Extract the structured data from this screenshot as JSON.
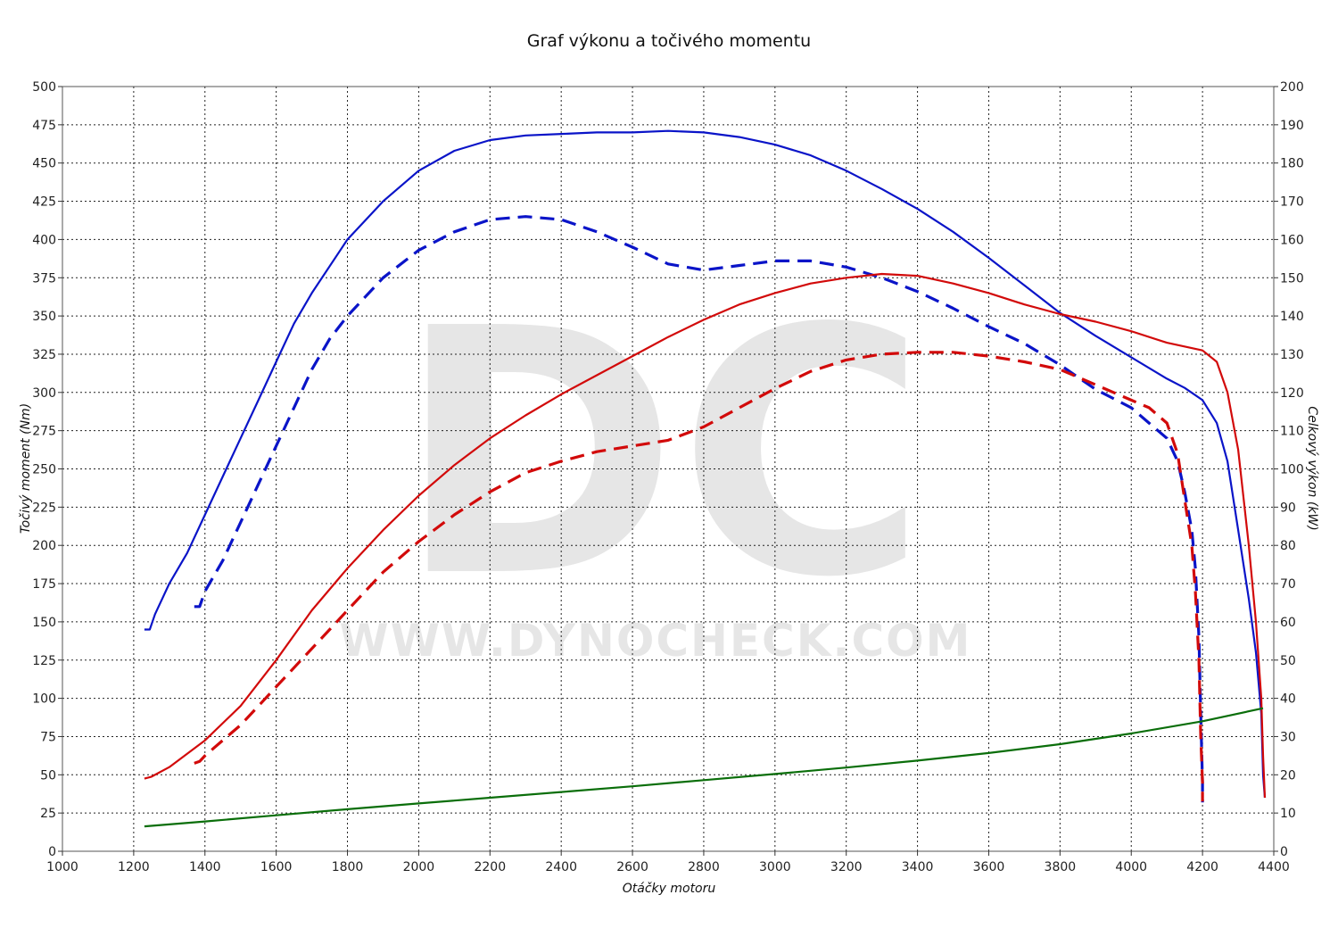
{
  "chart_data": {
    "type": "line",
    "title": "Graf výkonu a točivého momentu",
    "xlabel": "Otáčky motoru",
    "ylabel_left": "Točivý moment (Nm)",
    "ylabel_right": "Celkový výkon (kW)",
    "xlim": [
      1000,
      4400
    ],
    "ylim_left": [
      0,
      500
    ],
    "ylim_right": [
      0,
      200
    ],
    "x_ticks": [
      1000,
      1200,
      1400,
      1600,
      1800,
      2000,
      2200,
      2400,
      2600,
      2800,
      3000,
      3200,
      3400,
      3600,
      3800,
      4000,
      4200,
      4400
    ],
    "y_left_ticks": [
      0,
      25,
      50,
      75,
      100,
      125,
      150,
      175,
      200,
      225,
      250,
      275,
      300,
      325,
      350,
      375,
      400,
      425,
      450,
      475,
      500
    ],
    "y_right_ticks": [
      0,
      10,
      20,
      30,
      40,
      50,
      60,
      70,
      80,
      90,
      100,
      110,
      120,
      130,
      140,
      150,
      160,
      170,
      180,
      190,
      200
    ],
    "grid": true,
    "watermark": {
      "letters": "DC",
      "url": "WWW.DYNOCHECK.COM"
    },
    "series": [
      {
        "axis": "left",
        "color": "#0a14c8",
        "dash": false,
        "points": [
          [
            1230,
            145
          ],
          [
            1245,
            145
          ],
          [
            1260,
            155
          ],
          [
            1280,
            165
          ],
          [
            1300,
            175
          ],
          [
            1350,
            195
          ],
          [
            1400,
            220
          ],
          [
            1450,
            245
          ],
          [
            1500,
            270
          ],
          [
            1550,
            295
          ],
          [
            1600,
            320
          ],
          [
            1650,
            345
          ],
          [
            1700,
            365
          ],
          [
            1800,
            400
          ],
          [
            1900,
            425
          ],
          [
            2000,
            445
          ],
          [
            2100,
            458
          ],
          [
            2200,
            465
          ],
          [
            2300,
            468
          ],
          [
            2400,
            469
          ],
          [
            2500,
            470
          ],
          [
            2600,
            470
          ],
          [
            2700,
            471
          ],
          [
            2800,
            470
          ],
          [
            2900,
            467
          ],
          [
            3000,
            462
          ],
          [
            3100,
            455
          ],
          [
            3200,
            445
          ],
          [
            3300,
            433
          ],
          [
            3400,
            420
          ],
          [
            3500,
            405
          ],
          [
            3600,
            388
          ],
          [
            3700,
            370
          ],
          [
            3800,
            352
          ],
          [
            3900,
            337
          ],
          [
            4000,
            323
          ],
          [
            4100,
            309
          ],
          [
            4150,
            303
          ],
          [
            4200,
            295
          ],
          [
            4240,
            280
          ],
          [
            4270,
            255
          ],
          [
            4300,
            210
          ],
          [
            4330,
            165
          ],
          [
            4350,
            130
          ],
          [
            4365,
            90
          ],
          [
            4370,
            50
          ],
          [
            4375,
            35
          ]
        ]
      },
      {
        "axis": "left",
        "color": "#0a14c8",
        "dash": true,
        "points": [
          [
            1370,
            160
          ],
          [
            1385,
            160
          ],
          [
            1400,
            170
          ],
          [
            1450,
            190
          ],
          [
            1500,
            215
          ],
          [
            1550,
            240
          ],
          [
            1600,
            265
          ],
          [
            1650,
            290
          ],
          [
            1700,
            315
          ],
          [
            1750,
            335
          ],
          [
            1800,
            350
          ],
          [
            1900,
            375
          ],
          [
            2000,
            393
          ],
          [
            2100,
            405
          ],
          [
            2200,
            413
          ],
          [
            2300,
            415
          ],
          [
            2400,
            413
          ],
          [
            2500,
            405
          ],
          [
            2600,
            395
          ],
          [
            2700,
            384
          ],
          [
            2800,
            380
          ],
          [
            2900,
            383
          ],
          [
            3000,
            386
          ],
          [
            3100,
            386
          ],
          [
            3200,
            382
          ],
          [
            3300,
            375
          ],
          [
            3400,
            366
          ],
          [
            3500,
            355
          ],
          [
            3600,
            343
          ],
          [
            3700,
            332
          ],
          [
            3800,
            318
          ],
          [
            3900,
            302
          ],
          [
            4000,
            290
          ],
          [
            4050,
            280
          ],
          [
            4100,
            270
          ],
          [
            4130,
            255
          ],
          [
            4150,
            235
          ],
          [
            4170,
            210
          ],
          [
            4180,
            185
          ],
          [
            4190,
            140
          ],
          [
            4195,
            90
          ],
          [
            4200,
            45
          ],
          [
            4200,
            32
          ]
        ]
      },
      {
        "axis": "right",
        "color": "#d20a0a",
        "dash": false,
        "points": [
          [
            1230,
            19
          ],
          [
            1250,
            19.5
          ],
          [
            1300,
            22
          ],
          [
            1400,
            29
          ],
          [
            1500,
            38
          ],
          [
            1600,
            50
          ],
          [
            1700,
            63
          ],
          [
            1800,
            74
          ],
          [
            1900,
            84
          ],
          [
            2000,
            93
          ],
          [
            2100,
            101
          ],
          [
            2200,
            108
          ],
          [
            2300,
            114
          ],
          [
            2400,
            119.5
          ],
          [
            2500,
            124.5
          ],
          [
            2600,
            129.5
          ],
          [
            2700,
            134.5
          ],
          [
            2800,
            139
          ],
          [
            2900,
            143
          ],
          [
            3000,
            146
          ],
          [
            3100,
            148.5
          ],
          [
            3200,
            150
          ],
          [
            3300,
            151
          ],
          [
            3400,
            150.5
          ],
          [
            3500,
            148.5
          ],
          [
            3600,
            146
          ],
          [
            3700,
            143
          ],
          [
            3800,
            140.5
          ],
          [
            3900,
            138.5
          ],
          [
            4000,
            136
          ],
          [
            4100,
            133
          ],
          [
            4200,
            131
          ],
          [
            4240,
            128
          ],
          [
            4270,
            120
          ],
          [
            4300,
            105
          ],
          [
            4330,
            80
          ],
          [
            4350,
            60
          ],
          [
            4365,
            40
          ],
          [
            4370,
            25
          ],
          [
            4375,
            14
          ]
        ]
      },
      {
        "axis": "right",
        "color": "#d20a0a",
        "dash": true,
        "points": [
          [
            1370,
            23
          ],
          [
            1385,
            23.5
          ],
          [
            1400,
            25
          ],
          [
            1450,
            29
          ],
          [
            1500,
            33
          ],
          [
            1550,
            38
          ],
          [
            1600,
            43
          ],
          [
            1650,
            48
          ],
          [
            1700,
            53
          ],
          [
            1750,
            58
          ],
          [
            1800,
            63
          ],
          [
            1900,
            73
          ],
          [
            2000,
            81
          ],
          [
            2100,
            88
          ],
          [
            2200,
            94
          ],
          [
            2300,
            99
          ],
          [
            2400,
            102
          ],
          [
            2500,
            104.5
          ],
          [
            2600,
            106
          ],
          [
            2700,
            107.5
          ],
          [
            2800,
            111
          ],
          [
            2900,
            116
          ],
          [
            3000,
            121
          ],
          [
            3100,
            125.5
          ],
          [
            3200,
            128.5
          ],
          [
            3300,
            130
          ],
          [
            3400,
            130.5
          ],
          [
            3500,
            130.5
          ],
          [
            3600,
            129.5
          ],
          [
            3700,
            128
          ],
          [
            3800,
            126
          ],
          [
            3900,
            122
          ],
          [
            4000,
            118
          ],
          [
            4050,
            116
          ],
          [
            4100,
            112
          ],
          [
            4130,
            104
          ],
          [
            4150,
            92
          ],
          [
            4170,
            80
          ],
          [
            4180,
            68
          ],
          [
            4190,
            50
          ],
          [
            4195,
            30
          ],
          [
            4200,
            18
          ],
          [
            4200,
            13
          ]
        ]
      },
      {
        "axis": "right",
        "color": "#0a6e0a",
        "dash": false,
        "points": [
          [
            1230,
            6.5
          ],
          [
            1400,
            7.8
          ],
          [
            1600,
            9.4
          ],
          [
            1800,
            11
          ],
          [
            2000,
            12.5
          ],
          [
            2200,
            14
          ],
          [
            2400,
            15.5
          ],
          [
            2600,
            17
          ],
          [
            2800,
            18.6
          ],
          [
            3000,
            20.2
          ],
          [
            3200,
            21.9
          ],
          [
            3400,
            23.7
          ],
          [
            3600,
            25.7
          ],
          [
            3800,
            28
          ],
          [
            4000,
            30.8
          ],
          [
            4200,
            34
          ],
          [
            4370,
            37.4
          ]
        ]
      }
    ]
  }
}
